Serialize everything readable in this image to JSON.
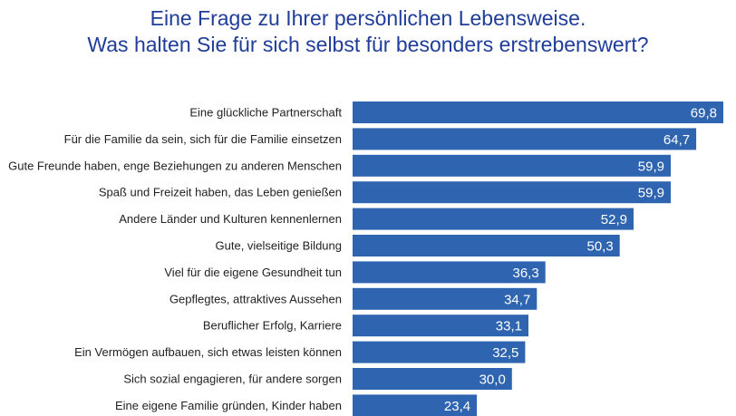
{
  "chart_data": {
    "type": "bar",
    "orientation": "horizontal",
    "title_lines": [
      "Eine Frage zu Ihrer persönlichen Lebensweise.",
      "Was halten Sie für sich selbst für besonders erstrebenswert?"
    ],
    "categories": [
      "Eine glückliche Partnerschaft",
      "Für die Familie da sein, sich für die Familie einsetzen",
      "Gute Freunde haben, enge Beziehungen zu anderen Menschen",
      "Spaß und Freizeit haben, das Leben genießen",
      "Andere Länder und Kulturen kennenlernen",
      "Gute, vielseitige Bildung",
      "Viel für die eigene Gesundheit tun",
      "Gepflegtes, attraktives Aussehen",
      "Beruflicher Erfolg, Karriere",
      "Ein Vermögen aufbauen, sich etwas leisten können",
      "Sich sozial engagieren, für andere sorgen",
      "Eine eigene Familie gründen, Kinder haben"
    ],
    "values": [
      69.8,
      64.7,
      59.9,
      59.9,
      52.9,
      50.3,
      36.3,
      34.7,
      33.1,
      32.5,
      30.0,
      23.4
    ],
    "value_labels": [
      "69,8",
      "64,7",
      "59,9",
      "59,9",
      "52,9",
      "50,3",
      "36,3",
      "34,7",
      "33,1",
      "32,5",
      "30,0",
      "23,4"
    ],
    "xlim": [
      0,
      69.8
    ],
    "grid": false,
    "legend": "none",
    "colors": {
      "bar": "#2f64b0",
      "title": "#1f3d99"
    }
  }
}
